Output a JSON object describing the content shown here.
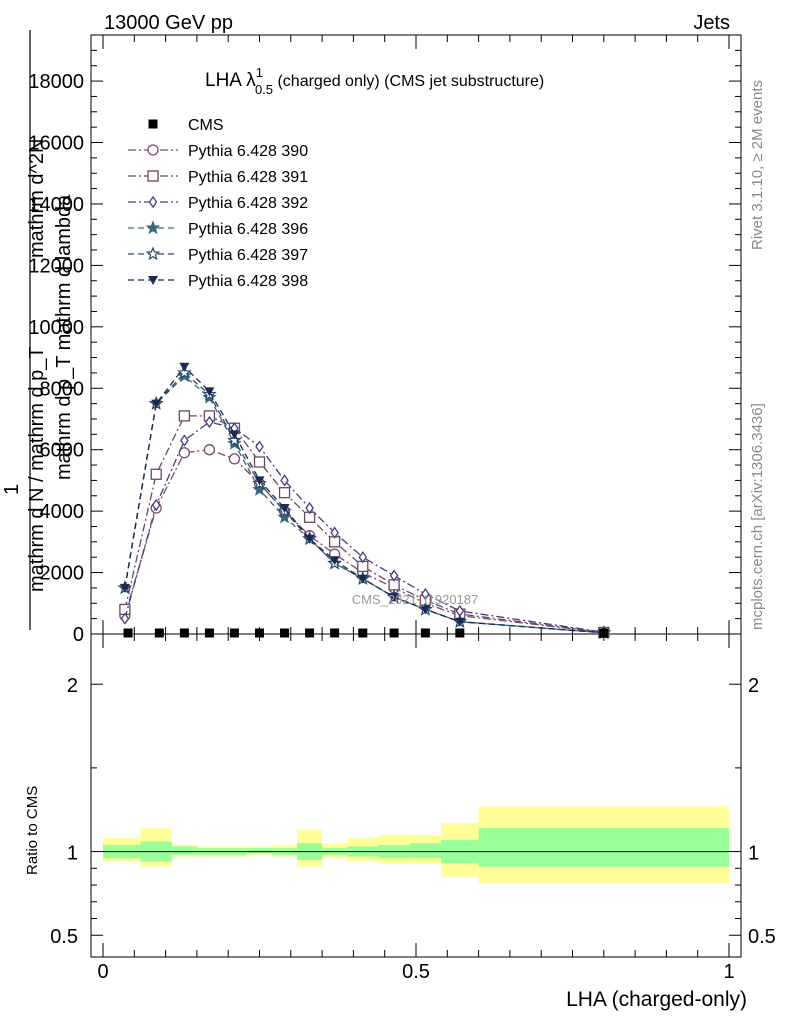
{
  "header": {
    "left": "13000 GeV pp",
    "right": "Jets"
  },
  "title": {
    "main": "LHA λ",
    "sup": "1",
    "sub": "0.5",
    "rest": " (charged only) (CMS jet substructure)"
  },
  "side_labels": {
    "rivet": "Rivet 3.1.10, ≥ 2M events",
    "mcplots": "mcplots.cern.ch [arXiv:1306.3436]"
  },
  "watermark": "CMS_2021_I1920187",
  "ylabel_main": {
    "line_top": "mathrm d^2N",
    "line_mid": "mathrm d p_T mathrm d lambda",
    "numer_one": "1",
    "denom": "mathrm d N / mathrm d p_T"
  },
  "ylabel_ratio": "Ratio to CMS",
  "xlabel": "LHA (charged-only)",
  "chart_data": [
    {
      "type": "line",
      "panel": "main",
      "xlim": [
        0,
        1
      ],
      "ylim": [
        0,
        19500
      ],
      "yticks": [
        0,
        2000,
        4000,
        6000,
        8000,
        10000,
        12000,
        14000,
        16000,
        18000
      ],
      "ytick_labels": [
        "0",
        "2000",
        "4000",
        "6000",
        "8000",
        "10000",
        "12000",
        "14000",
        "16000",
        "18000"
      ],
      "legend_position": "top-left",
      "series": [
        {
          "name": "CMS",
          "color": "#000000",
          "marker": "square-filled",
          "x": [
            0.04,
            0.09,
            0.13,
            0.17,
            0.21,
            0.25,
            0.29,
            0.33,
            0.37,
            0.415,
            0.465,
            0.515,
            0.57,
            0.8
          ],
          "y": [
            0,
            0,
            0,
            0,
            0,
            0,
            0,
            0,
            0,
            0,
            0,
            0,
            0,
            0
          ]
        },
        {
          "name": "Pythia 6.428 390",
          "color": "#7a4a70",
          "marker": "circle-open",
          "dash": "8,3,2,3",
          "x": [
            0.035,
            0.085,
            0.13,
            0.17,
            0.21,
            0.25,
            0.29,
            0.33,
            0.37,
            0.415,
            0.465,
            0.515,
            0.57,
            0.8
          ],
          "y": [
            600,
            4100,
            5900,
            6000,
            5700,
            4900,
            4000,
            3200,
            2600,
            2000,
            1500,
            1000,
            600,
            50
          ]
        },
        {
          "name": "Pythia 6.428 391",
          "color": "#6a4860",
          "marker": "square-open",
          "dash": "8,3,2,3",
          "x": [
            0.035,
            0.085,
            0.13,
            0.17,
            0.21,
            0.25,
            0.29,
            0.33,
            0.37,
            0.415,
            0.465,
            0.515,
            0.57,
            0.8
          ],
          "y": [
            800,
            5200,
            7100,
            7100,
            6700,
            5600,
            4600,
            3800,
            3000,
            2200,
            1600,
            1100,
            650,
            50
          ]
        },
        {
          "name": "Pythia 6.428 392",
          "color": "#4a3a7a",
          "marker": "diamond-open",
          "dash": "8,3,2,3",
          "x": [
            0.035,
            0.085,
            0.13,
            0.17,
            0.21,
            0.25,
            0.29,
            0.33,
            0.37,
            0.415,
            0.465,
            0.515,
            0.57,
            0.8
          ],
          "y": [
            500,
            4200,
            6300,
            6900,
            6700,
            6100,
            5000,
            4100,
            3300,
            2500,
            1900,
            1300,
            750,
            60
          ]
        },
        {
          "name": "Pythia 6.428 396",
          "color": "#3a6a7a",
          "marker": "star-filled",
          "dash": "6,4",
          "x": [
            0.035,
            0.085,
            0.13,
            0.17,
            0.21,
            0.25,
            0.29,
            0.33,
            0.37,
            0.415,
            0.465,
            0.515,
            0.57,
            0.8
          ],
          "y": [
            1500,
            7500,
            8400,
            7700,
            6200,
            4700,
            3800,
            3100,
            2300,
            1800,
            1200,
            800,
            400,
            40
          ]
        },
        {
          "name": "Pythia 6.428 397",
          "color": "#2a4a6a",
          "marker": "star-open",
          "dash": "6,4",
          "x": [
            0.035,
            0.085,
            0.13,
            0.17,
            0.21,
            0.25,
            0.29,
            0.33,
            0.37,
            0.415,
            0.465,
            0.515,
            0.57,
            0.8
          ],
          "y": [
            1500,
            7500,
            8500,
            7800,
            6300,
            4900,
            4000,
            3100,
            2300,
            1800,
            1200,
            800,
            400,
            40
          ]
        },
        {
          "name": "Pythia 6.428 398",
          "color": "#1a2a50",
          "marker": "triangle-down-filled",
          "dash": "6,4",
          "x": [
            0.035,
            0.085,
            0.13,
            0.17,
            0.21,
            0.25,
            0.29,
            0.33,
            0.37,
            0.415,
            0.465,
            0.515,
            0.57,
            0.8
          ],
          "y": [
            1500,
            7500,
            8700,
            7900,
            6500,
            5000,
            4100,
            3100,
            2400,
            1800,
            1200,
            800,
            400,
            40
          ]
        }
      ]
    },
    {
      "type": "area",
      "panel": "ratio",
      "xlim": [
        0,
        1
      ],
      "ylim": [
        0.37,
        2.3
      ],
      "yticks": [
        0.5,
        1,
        2
      ],
      "ytick_labels": [
        "0.5",
        "1",
        "2"
      ],
      "xticks": [
        0,
        0.5,
        1
      ],
      "xtick_labels": [
        "0",
        "0.5",
        "1"
      ],
      "reference_line": 1,
      "bins": [
        {
          "x": [
            0.0,
            0.06
          ],
          "stat": [
            0.96,
            1.04
          ],
          "total": [
            0.94,
            1.08
          ]
        },
        {
          "x": [
            0.06,
            0.11
          ],
          "stat": [
            0.94,
            1.06
          ],
          "total": [
            0.91,
            1.14
          ]
        },
        {
          "x": [
            0.11,
            0.15
          ],
          "stat": [
            0.98,
            1.03
          ],
          "total": [
            0.97,
            1.04
          ]
        },
        {
          "x": [
            0.15,
            0.19
          ],
          "stat": [
            0.98,
            1.02
          ],
          "total": [
            0.97,
            1.03
          ]
        },
        {
          "x": [
            0.19,
            0.23
          ],
          "stat": [
            0.98,
            1.02
          ],
          "total": [
            0.97,
            1.03
          ]
        },
        {
          "x": [
            0.23,
            0.27
          ],
          "stat": [
            0.99,
            1.02
          ],
          "total": [
            0.98,
            1.03
          ]
        },
        {
          "x": [
            0.27,
            0.31
          ],
          "stat": [
            0.98,
            1.02
          ],
          "total": [
            0.97,
            1.04
          ]
        },
        {
          "x": [
            0.31,
            0.35
          ],
          "stat": [
            0.95,
            1.05
          ],
          "total": [
            0.91,
            1.13
          ]
        },
        {
          "x": [
            0.35,
            0.39
          ],
          "stat": [
            0.98,
            1.02
          ],
          "total": [
            0.96,
            1.05
          ]
        },
        {
          "x": [
            0.39,
            0.44
          ],
          "stat": [
            0.97,
            1.03
          ],
          "total": [
            0.94,
            1.08
          ]
        },
        {
          "x": [
            0.44,
            0.49
          ],
          "stat": [
            0.96,
            1.04
          ],
          "total": [
            0.93,
            1.1
          ]
        },
        {
          "x": [
            0.49,
            0.54
          ],
          "stat": [
            0.96,
            1.05
          ],
          "total": [
            0.93,
            1.1
          ]
        },
        {
          "x": [
            0.54,
            0.6
          ],
          "stat": [
            0.93,
            1.07
          ],
          "total": [
            0.85,
            1.17
          ]
        },
        {
          "x": [
            0.6,
            1.0
          ],
          "stat": [
            0.91,
            1.14
          ],
          "total": [
            0.81,
            1.27
          ]
        }
      ]
    }
  ],
  "colors": {
    "stat_band": "#99ff99",
    "total_band": "#ffff99",
    "axis": "#000000",
    "side_text": "#888888"
  }
}
